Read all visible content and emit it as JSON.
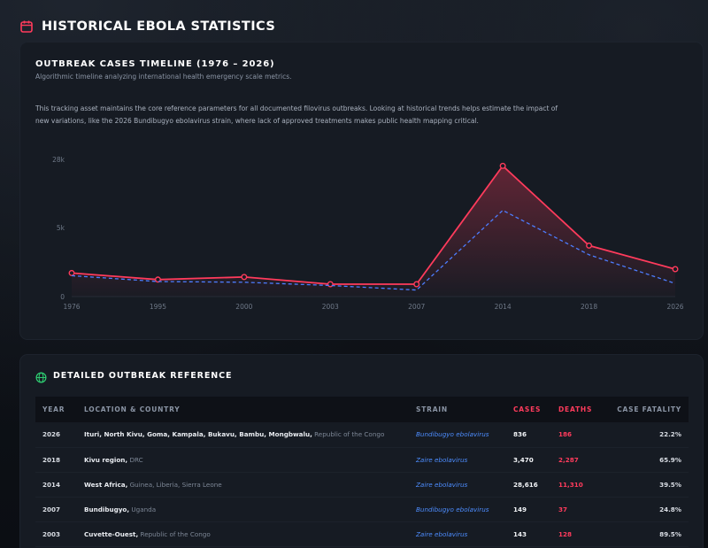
{
  "page": {
    "title": "HISTORICAL EBOLA STATISTICS"
  },
  "chart_card": {
    "title": "OUTBREAK CASES TIMELINE (1976 – 2026)",
    "subtitle": "Algorithmic timeline analyzing international health emergency scale metrics.",
    "description": "This tracking asset maintains the core reference parameters for all documented filovirus outbreaks. Looking at historical trends helps estimate the impact of new variations, like the 2026 Bundibugyo ebolavirus strain, where lack of approved treatments makes public health mapping critical."
  },
  "chart_data": {
    "type": "line",
    "categories": [
      "1976",
      "1995",
      "2000",
      "2003",
      "2007",
      "2014",
      "2018",
      "2026"
    ],
    "y_tick_labels": [
      "0",
      "5k",
      "28k"
    ],
    "series": [
      {
        "style": "solid",
        "color": "#ff3b5c",
        "fill": true,
        "values": [
          1800,
          1300,
          1500,
          950,
          950,
          10000,
          3900,
          2100
        ]
      },
      {
        "style": "dashed",
        "color": "#4d7dff",
        "fill": false,
        "values": [
          1600,
          1150,
          1100,
          850,
          500,
          6600,
          3200,
          1000
        ]
      }
    ],
    "grid": false
  },
  "table_card": {
    "title": "DETAILED OUTBREAK REFERENCE",
    "columns": [
      "YEAR",
      "LOCATION & COUNTRY",
      "STRAIN",
      "CASES",
      "DEATHS",
      "CASE FATALITY"
    ],
    "rows": [
      {
        "year": "2026",
        "location": "Ituri, North Kivu, Goma, Kampala, Bukavu, Bambu, Mongbwalu,",
        "country": " Republic of the Congo",
        "strain": "Bundibugyo ebolavirus",
        "cases": "836",
        "deaths": "186",
        "cfr": "22.2%"
      },
      {
        "year": "2018",
        "location": "Kivu region,",
        "country": " DRC",
        "strain": "Zaire ebolavirus",
        "cases": "3,470",
        "deaths": "2,287",
        "cfr": "65.9%"
      },
      {
        "year": "2014",
        "location": "West Africa,",
        "country": " Guinea, Liberia, Sierra Leone",
        "strain": "Zaire ebolavirus",
        "cases": "28,616",
        "deaths": "11,310",
        "cfr": "39.5%"
      },
      {
        "year": "2007",
        "location": "Bundibugyo,",
        "country": " Uganda",
        "strain": "Bundibugyo ebolavirus",
        "cases": "149",
        "deaths": "37",
        "cfr": "24.8%"
      },
      {
        "year": "2003",
        "location": "Cuvette-Ouest,",
        "country": " Republic of the Congo",
        "strain": "Zaire ebolavirus",
        "cases": "143",
        "deaths": "128",
        "cfr": "89.5%"
      }
    ]
  },
  "icons": {
    "header": "calendar-icon",
    "table": "globe-icon"
  },
  "colors": {
    "accent_red": "#ff3b5c",
    "accent_blue": "#4d8dff",
    "icon_green": "#2ecc71"
  }
}
